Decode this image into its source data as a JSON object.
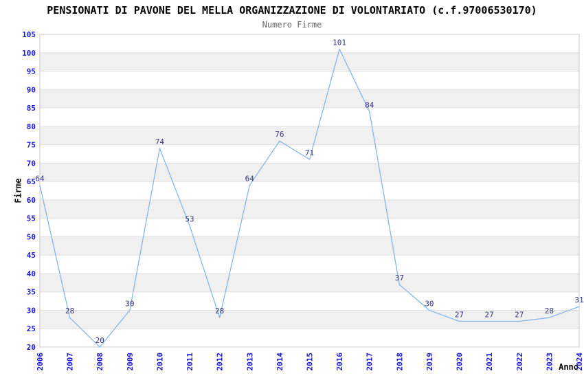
{
  "chart_data": {
    "type": "line",
    "title": "PENSIONATI DI PAVONE DEL MELLA ORGANIZZAZIONE DI VOLONTARIATO (c.f.97006530170)",
    "subtitle": "Numero Firme",
    "xlabel": "Anno",
    "ylabel": "Firme",
    "x": [
      2006,
      2007,
      2008,
      2009,
      2010,
      2011,
      2012,
      2013,
      2014,
      2015,
      2016,
      2017,
      2018,
      2019,
      2020,
      2021,
      2022,
      2023,
      2024
    ],
    "values": [
      64,
      28,
      20,
      30,
      74,
      53,
      28,
      64,
      76,
      71,
      101,
      84,
      37,
      30,
      27,
      27,
      27,
      28,
      31
    ],
    "ylim": [
      20,
      105
    ],
    "ytick_step": 5,
    "grid": true,
    "legend_position": "none",
    "colors": {
      "line": "#84b6ea",
      "tick_label": "#1a1ad6",
      "data_label": "#333380",
      "band": "#f0f0f0",
      "grid_line": "#e0e0e0",
      "plot_border": "#c8c8c8",
      "title": "#000000",
      "subtitle": "#666666",
      "axis_title": "#000000"
    }
  }
}
